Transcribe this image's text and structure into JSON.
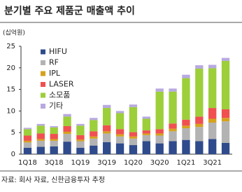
{
  "chart_data": {
    "type": "stacked_bar",
    "title": "분기별 주요 제품군 매출액 추이",
    "unit_label": "(십억원)",
    "source": "자료: 회사 자료, 신한금융투자 추정",
    "categories": [
      "1Q18",
      null,
      "3Q18",
      null,
      "1Q19",
      null,
      "3Q19",
      null,
      "1Q20",
      null,
      "3Q20",
      null,
      "1Q21",
      null,
      "3Q21",
      null
    ],
    "series": [
      {
        "name": "HIFU",
        "color": "#2f4b8c",
        "values": [
          1.5,
          1.7,
          1.8,
          2.9,
          1.5,
          2.0,
          2.8,
          2.5,
          2.1,
          3.0,
          2.5,
          3.0,
          3.3,
          3.0,
          3.5,
          2.6
        ]
      },
      {
        "name": "RF",
        "color": "#b3b3b3",
        "values": [
          1.2,
          1.4,
          1.3,
          1.8,
          1.5,
          1.6,
          2.0,
          1.6,
          1.5,
          1.4,
          1.8,
          2.3,
          2.7,
          3.3,
          3.8,
          5.0
        ]
      },
      {
        "name": "IPL",
        "color": "#d6a21c",
        "values": [
          0.4,
          0.4,
          0.4,
          0.5,
          0.4,
          0.5,
          0.5,
          0.5,
          0.5,
          0.4,
          0.5,
          0.6,
          0.6,
          0.7,
          0.9,
          0.8
        ]
      },
      {
        "name": "LASER",
        "color": "#f05050",
        "values": [
          1.2,
          1.3,
          1.2,
          1.3,
          1.0,
          1.2,
          1.4,
          1.2,
          1.0,
          0.7,
          1.0,
          1.2,
          1.4,
          1.7,
          2.5,
          2.0
        ]
      },
      {
        "name": "소모품",
        "color": "#9ccf3a",
        "values": [
          1.5,
          1.8,
          1.5,
          2.2,
          2.2,
          2.6,
          4.0,
          3.7,
          5.8,
          2.7,
          8.7,
          7.4,
          9.6,
          11.1,
          9.2,
          11.2
        ]
      },
      {
        "name": "기타",
        "color": "#b8a9e0",
        "values": [
          0.3,
          0.4,
          0.3,
          0.6,
          0.4,
          0.5,
          0.7,
          0.5,
          0.6,
          0.5,
          0.7,
          0.7,
          0.8,
          0.8,
          0.8,
          0.7
        ]
      }
    ],
    "ylim": [
      0,
      25
    ],
    "yticks": [
      0,
      5,
      10,
      15,
      20,
      25
    ]
  }
}
